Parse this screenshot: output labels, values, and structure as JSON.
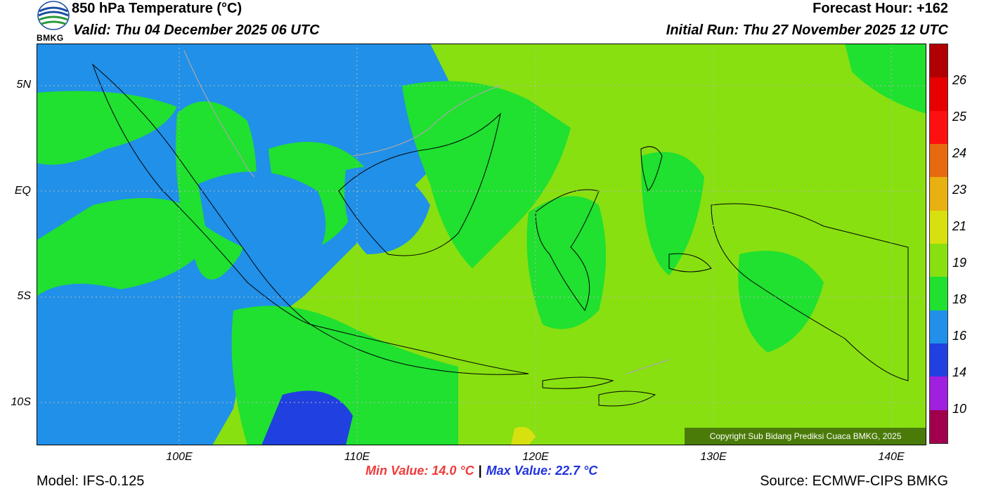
{
  "header": {
    "title": "850 hPa Temperature (°C)",
    "valid": "Valid: Thu 04 December 2025 06 UTC",
    "forecast_hour": "Forecast Hour: +162",
    "initial_run": "Initial Run: Thu 27 November 2025 12 UTC",
    "logo_text": "BMKG"
  },
  "map": {
    "y_ticks": [
      "5N",
      "EQ",
      "5S",
      "10S"
    ],
    "x_ticks": [
      "100E",
      "110E",
      "120E",
      "130E",
      "140E"
    ],
    "copyright": "Copyright Sub Bidang Prediksi Cuaca BMKG, 2025"
  },
  "colorbar": {
    "labels": [
      "26",
      "25",
      "24",
      "23",
      "21",
      "19",
      "18",
      "16",
      "14",
      "10"
    ],
    "colors": [
      "#b00000",
      "#e60000",
      "#ff1010",
      "#e86a10",
      "#e8b010",
      "#d8e010",
      "#88e010",
      "#20e030",
      "#2090e8",
      "#2040e0",
      "#a020e0",
      "#a0004c"
    ]
  },
  "stats": {
    "min": "Min Value: 14.0 °C",
    "separator": "|",
    "max": "Max Value: 22.7 °C"
  },
  "footer": {
    "model": "Model: IFS-0.125",
    "source": "Source: ECMWF-CIPS BMKG"
  }
}
